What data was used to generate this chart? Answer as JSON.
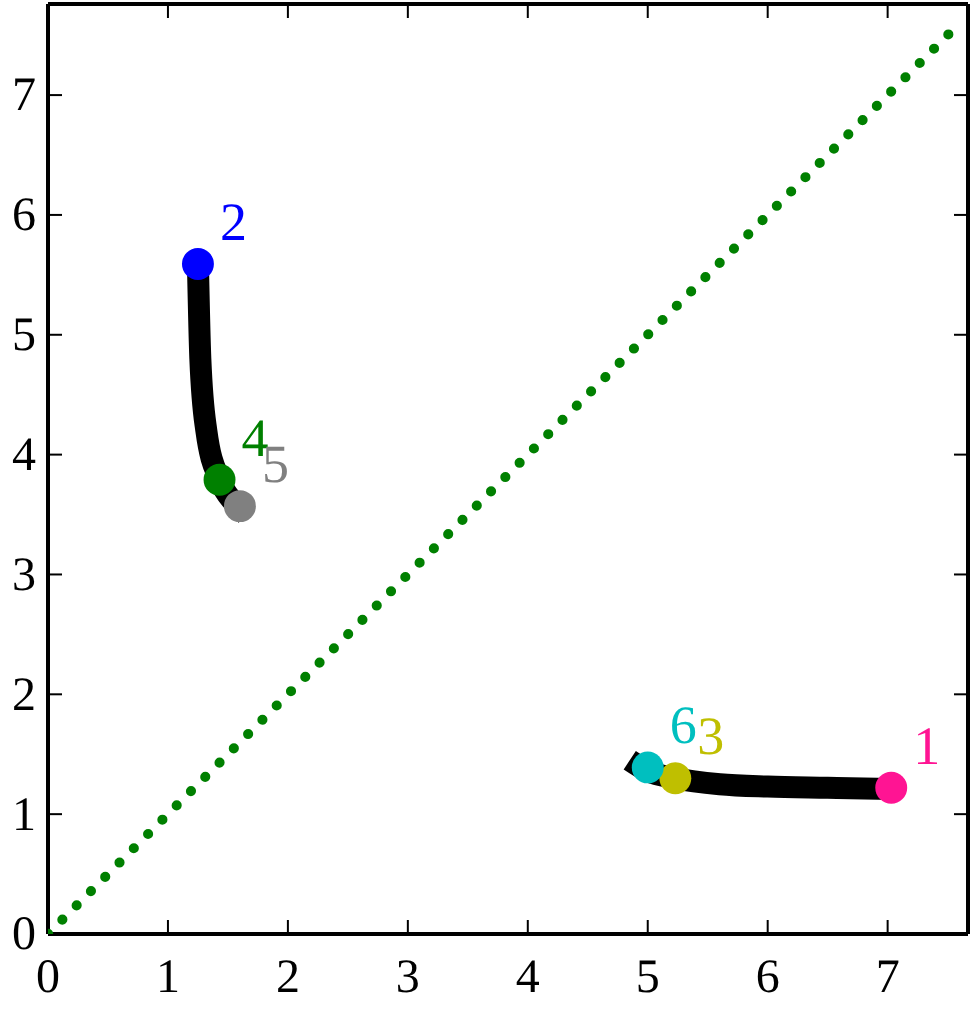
{
  "chart_data": {
    "type": "scatter",
    "xlim": [
      0,
      7.67
    ],
    "ylim": [
      0,
      7.76
    ],
    "xticks": [
      0,
      1,
      2,
      3,
      4,
      5,
      6,
      7
    ],
    "yticks": [
      0,
      1,
      2,
      3,
      4,
      5,
      6,
      7
    ],
    "grid": false,
    "legend": false,
    "series": [
      {
        "type": "line",
        "color": "#008000",
        "line_style": "dotted",
        "marker": "none",
        "x": [
          0,
          7.6
        ],
        "values": [
          0,
          7.6
        ]
      },
      {
        "type": "line",
        "color": "#000000",
        "line_style": "solid",
        "marker": "none",
        "x": [
          1.25,
          1.27,
          1.32,
          1.43,
          1.55,
          1.65
        ],
        "values": [
          5.59,
          4.8,
          4.2,
          3.79,
          3.6,
          3.5
        ]
      },
      {
        "type": "line",
        "color": "#000000",
        "line_style": "solid",
        "marker": "none",
        "x": [
          4.85,
          5.0,
          5.23,
          5.6,
          6.0,
          6.5,
          7.03
        ],
        "values": [
          1.45,
          1.36,
          1.3,
          1.25,
          1.23,
          1.22,
          1.21
        ]
      },
      {
        "name": "1",
        "marker": "circle",
        "color": "#ff1493",
        "x": [
          7.03
        ],
        "values": [
          1.22
        ]
      },
      {
        "name": "2",
        "marker": "circle",
        "color": "#0000ff",
        "x": [
          1.25
        ],
        "values": [
          5.59
        ]
      },
      {
        "name": "3",
        "marker": "circle",
        "color": "#bfbf00",
        "x": [
          5.23
        ],
        "values": [
          1.3
        ]
      },
      {
        "name": "4",
        "marker": "circle",
        "color": "#008000",
        "x": [
          1.43
        ],
        "values": [
          3.79
        ]
      },
      {
        "name": "5",
        "marker": "circle",
        "color": "#808080",
        "x": [
          1.6
        ],
        "values": [
          3.57
        ]
      },
      {
        "name": "6",
        "marker": "circle",
        "color": "#00bfbf",
        "x": [
          5.0
        ],
        "values": [
          1.39
        ]
      }
    ]
  }
}
